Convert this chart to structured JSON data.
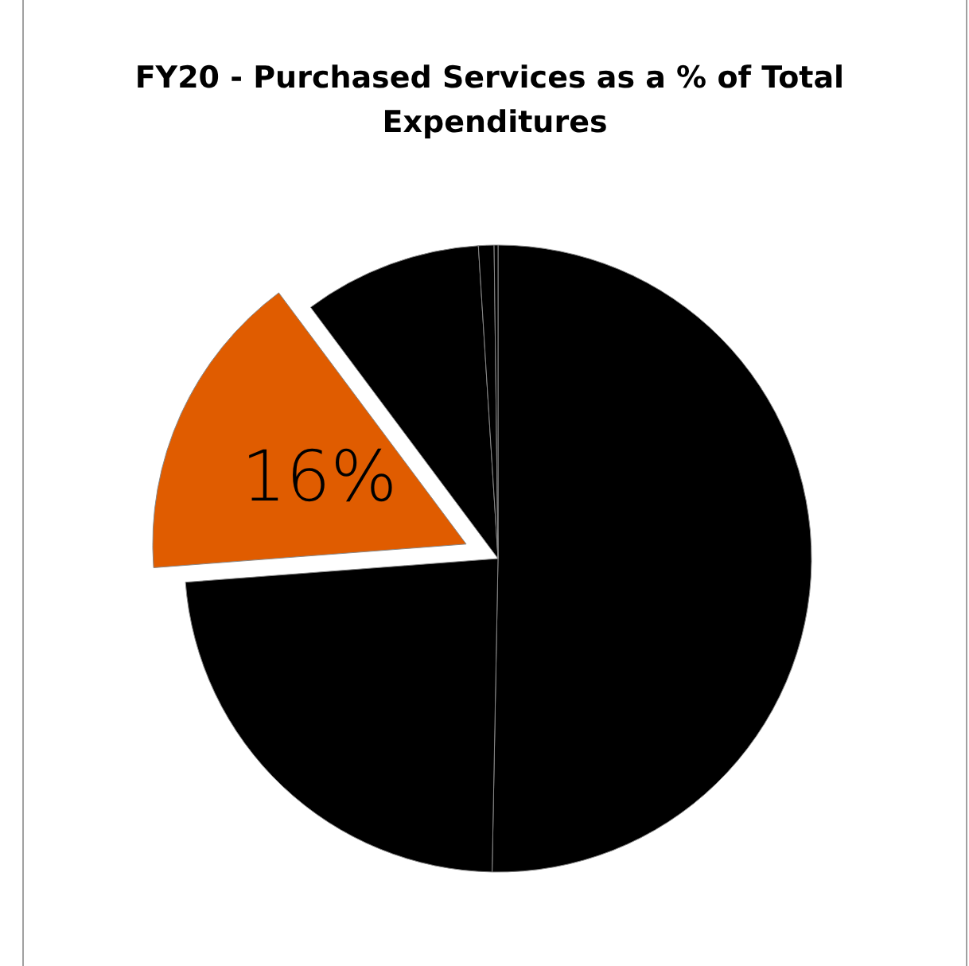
{
  "chart_data": {
    "type": "pie",
    "title": "FY20 - Purchased Services as a % of Total Expenditures",
    "categories": [
      null,
      null,
      null,
      null,
      null,
      null
    ],
    "values": [
      50.3,
      23.5,
      16,
      9.2,
      0.8,
      0.2
    ],
    "colors": [
      "#000000",
      "#000000",
      "#e05c00",
      "#000000",
      "#000000",
      "#000000"
    ],
    "value_labels": [
      null,
      null,
      "16%",
      null,
      null,
      null
    ]
  }
}
